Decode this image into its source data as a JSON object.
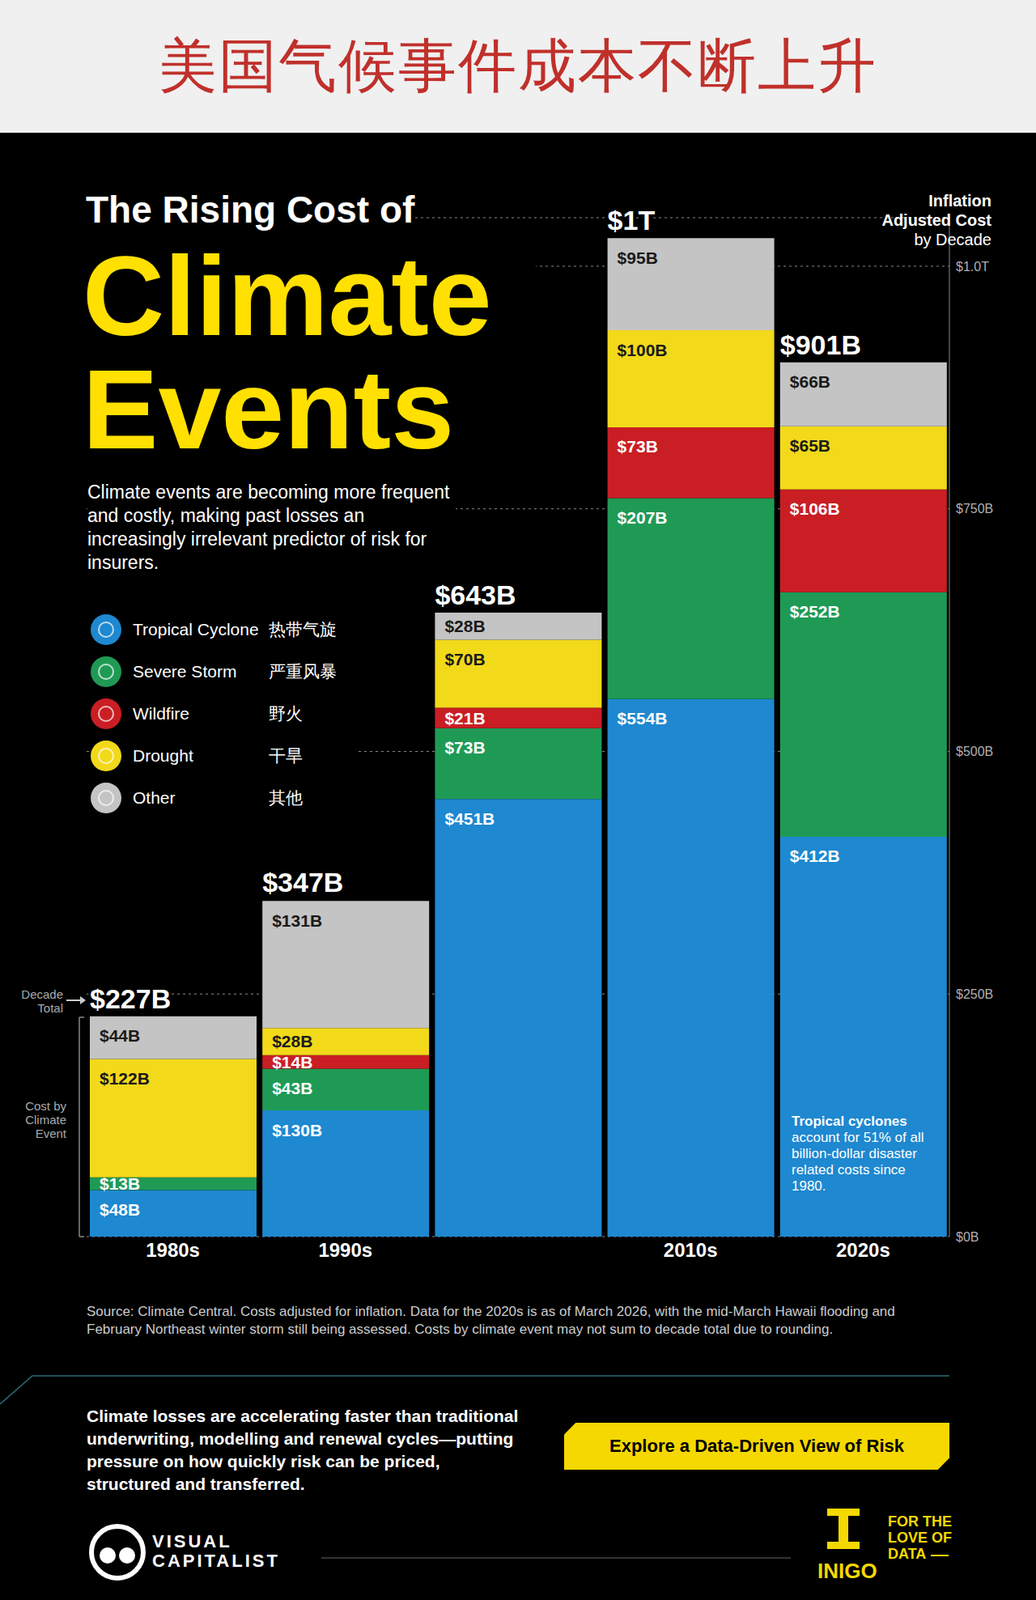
{
  "header": "美国气候事件成本不断上升",
  "chart_data": {
    "type": "bar",
    "stacked": true,
    "data_labels": true,
    "grid": true,
    "legend": "left",
    "pretitle": "The Rising Cost of",
    "title": "Climate Events",
    "subtitle": "Climate events are becoming more frequent and costly, making past losses an increasingly irrelevant predictor of risk for insurers.",
    "categories": [
      "1980s",
      "1990s",
      null,
      "2010s",
      "2020s"
    ],
    "series": [
      {
        "name": "Tropical Cyclone",
        "label_zh": "热带气旋",
        "color": "#1e88d0",
        "values": [
          48,
          130,
          451,
          554,
          412
        ],
        "value_labels": [
          "$48B",
          "$130B",
          "$451B",
          "$554B",
          "$412B"
        ]
      },
      {
        "name": "Severe Storm",
        "label_zh": "严重风暴",
        "color": "#1f9a55",
        "values": [
          13,
          43,
          73,
          207,
          252
        ],
        "value_labels": [
          "$13B",
          "$43B",
          "$73B",
          "$207B",
          "$252B"
        ]
      },
      {
        "name": "Wildfire",
        "label_zh": "野火",
        "color": "#c91e24",
        "values": [
          null,
          14,
          21,
          73,
          106
        ],
        "value_labels": [
          null,
          "$14B",
          "$21B",
          "$73B",
          "$106B"
        ]
      },
      {
        "name": "Drought",
        "label_zh": "干旱",
        "color": "#f2d91a",
        "values": [
          122,
          28,
          70,
          100,
          65
        ],
        "value_labels": [
          "$122B",
          "$28B",
          "$70B",
          "$100B",
          "$65B"
        ]
      },
      {
        "name": "Other",
        "label_zh": "其他",
        "color": "#c4c4c4",
        "values": [
          44,
          131,
          28,
          95,
          66
        ],
        "value_labels": [
          "$44B",
          "$131B",
          "$28B",
          "$95B",
          "$66B"
        ]
      }
    ],
    "totals": {
      "name": "Decade Total",
      "values": [
        227,
        347,
        643,
        1000,
        901
      ],
      "value_labels": [
        "$227B",
        "$347B",
        "$643B",
        "$1T",
        "$901B"
      ]
    },
    "ylim": [
      0,
      1050
    ],
    "yticks": [
      {
        "value": 0,
        "label": "$0B"
      },
      {
        "value": 250,
        "label": "$250B"
      },
      {
        "value": 500,
        "label": "$500B"
      },
      {
        "value": 750,
        "label": "$750B"
      },
      {
        "value": 1000,
        "label": "$1.0T"
      }
    ],
    "annotations": {
      "axis_note": [
        "Inflation",
        "Adjusted Cost",
        "by Decade"
      ],
      "cost_by_event": "Cost by Climate Event",
      "callout_title": "Tropical cyclones",
      "callout": "account for 51% of all billion-dollar disaster related costs since 1980."
    },
    "source": "Source: Climate Central. Costs adjusted for inflation. Data for the 2020s is as of March 2026, with the mid-March Hawaii flooding and February Northeast winter storm still being assessed. Costs by climate event may not sum to decade total due to rounding."
  },
  "footer": {
    "text": "Climate losses are accelerating faster than traditional underwriting, modelling and renewal cycles—putting pressure on how quickly risk can be priced, structured and transferred.",
    "button": "Explore a Data-Driven View of Risk",
    "brand": [
      "VISUAL",
      "CAPITALIST"
    ],
    "sponsor": "INIGO",
    "sponsor_tagline": [
      "FOR THE",
      "LOVE OF",
      "DATA"
    ]
  }
}
